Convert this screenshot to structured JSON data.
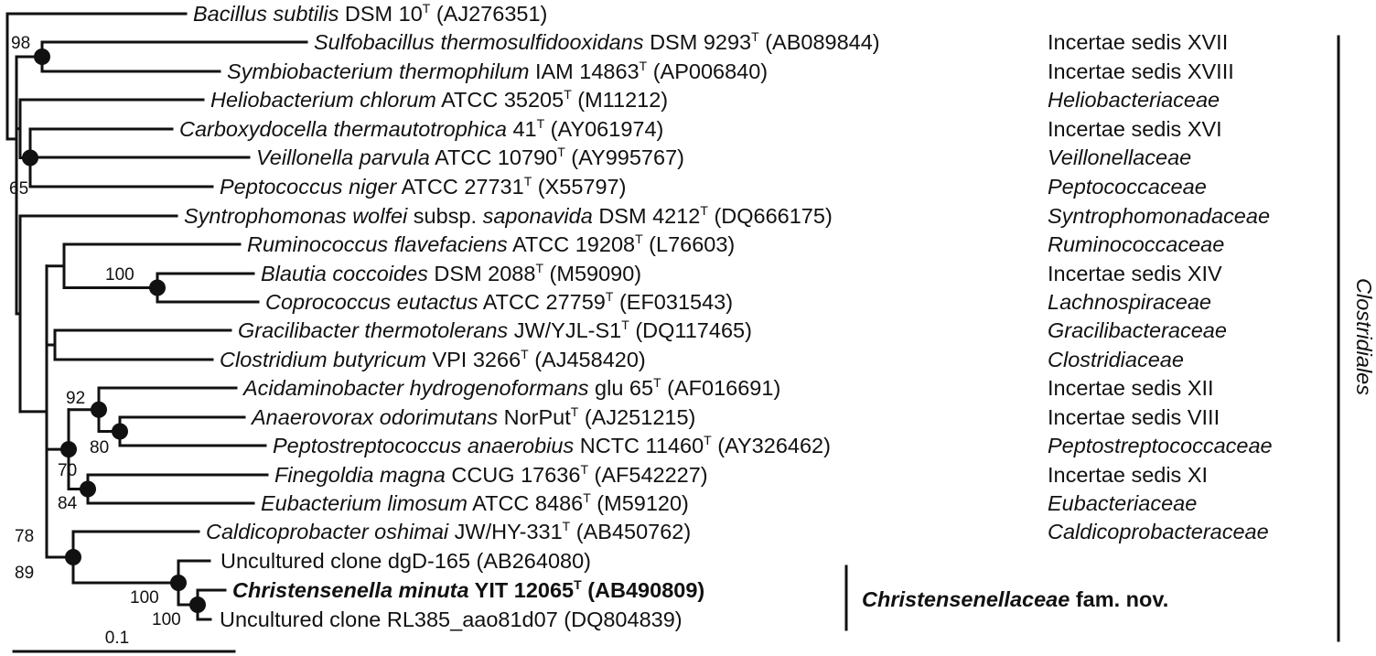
{
  "taxa": [
    {
      "id": "bsub",
      "parts": [
        {
          "t": "Bacillus subtilis",
          "i": true
        },
        {
          "t": " DSM 10"
        },
        {
          "t": "T",
          "sup": true
        },
        {
          "t": " (AJ276351)"
        }
      ],
      "family": []
    },
    {
      "id": "sulfo",
      "parts": [
        {
          "t": "Sulfobacillus thermosulfidooxidans",
          "i": true
        },
        {
          "t": " DSM 9293"
        },
        {
          "t": "T",
          "sup": true
        },
        {
          "t": " (AB089844)"
        }
      ],
      "family": [
        {
          "t": "Incertae sedis XVII"
        }
      ]
    },
    {
      "id": "symb",
      "parts": [
        {
          "t": "Symbiobacterium thermophilum",
          "i": true
        },
        {
          "t": " IAM 14863"
        },
        {
          "t": "T",
          "sup": true
        },
        {
          "t": " (AP006840)"
        }
      ],
      "family": [
        {
          "t": "Incertae sedis XVIII"
        }
      ]
    },
    {
      "id": "helio",
      "parts": [
        {
          "t": "Heliobacterium chlorum",
          "i": true
        },
        {
          "t": " ATCC 35205"
        },
        {
          "t": "T",
          "sup": true
        },
        {
          "t": " (M11212)"
        }
      ],
      "family": [
        {
          "t": "Heliobacteriaceae",
          "i": true
        }
      ]
    },
    {
      "id": "carbo",
      "parts": [
        {
          "t": "Carboxydocella thermautotrophica",
          "i": true
        },
        {
          "t": " 41"
        },
        {
          "t": "T",
          "sup": true
        },
        {
          "t": " (AY061974)"
        }
      ],
      "family": [
        {
          "t": "Incertae sedis XVI"
        }
      ]
    },
    {
      "id": "veil",
      "parts": [
        {
          "t": "Veillonella parvula",
          "i": true
        },
        {
          "t": " ATCC 10790"
        },
        {
          "t": "T",
          "sup": true
        },
        {
          "t": " (AY995767)"
        }
      ],
      "family": [
        {
          "t": "Veillonellaceae",
          "i": true
        }
      ]
    },
    {
      "id": "pepto",
      "parts": [
        {
          "t": "Peptococcus niger",
          "i": true
        },
        {
          "t": " ATCC 27731"
        },
        {
          "t": "T",
          "sup": true
        },
        {
          "t": " (X55797)"
        }
      ],
      "family": [
        {
          "t": "Peptococcaceae",
          "i": true
        }
      ]
    },
    {
      "id": "syntro",
      "parts": [
        {
          "t": "Syntrophomonas wolfei",
          "i": true
        },
        {
          "t": " subsp. "
        },
        {
          "t": "saponavida",
          "i": true
        },
        {
          "t": " DSM 4212"
        },
        {
          "t": "T",
          "sup": true
        },
        {
          "t": " (DQ666175)"
        }
      ],
      "family": [
        {
          "t": "Syntrophomonadaceae",
          "i": true
        }
      ]
    },
    {
      "id": "rumino",
      "parts": [
        {
          "t": "Ruminococcus flavefaciens",
          "i": true
        },
        {
          "t": " ATCC 19208"
        },
        {
          "t": "T",
          "sup": true
        },
        {
          "t": " (L76603)"
        }
      ],
      "family": [
        {
          "t": "Ruminococcaceae",
          "i": true
        }
      ]
    },
    {
      "id": "blautia",
      "parts": [
        {
          "t": "Blautia coccoides",
          "i": true
        },
        {
          "t": " DSM 2088"
        },
        {
          "t": "T",
          "sup": true
        },
        {
          "t": " (M59090)"
        }
      ],
      "family": [
        {
          "t": "Incertae sedis XIV"
        }
      ]
    },
    {
      "id": "copro",
      "parts": [
        {
          "t": "Coprococcus eutactus",
          "i": true
        },
        {
          "t": " ATCC 27759"
        },
        {
          "t": "T",
          "sup": true
        },
        {
          "t": " (EF031543)"
        }
      ],
      "family": [
        {
          "t": "Lachnospiraceae",
          "i": true
        }
      ]
    },
    {
      "id": "graci",
      "parts": [
        {
          "t": "Gracilibacter thermotolerans",
          "i": true
        },
        {
          "t": " JW/YJL-S1"
        },
        {
          "t": "T",
          "sup": true
        },
        {
          "t": " (DQ117465)"
        }
      ],
      "family": [
        {
          "t": "Gracilibacteraceae",
          "i": true
        }
      ]
    },
    {
      "id": "clost",
      "parts": [
        {
          "t": "Clostridium butyricum",
          "i": true
        },
        {
          "t": " VPI 3266"
        },
        {
          "t": "T",
          "sup": true
        },
        {
          "t": " (AJ458420)"
        }
      ],
      "family": [
        {
          "t": "Clostridiaceae",
          "i": true
        }
      ]
    },
    {
      "id": "acida",
      "parts": [
        {
          "t": "Acidaminobacter hydrogenoformans",
          "i": true
        },
        {
          "t": " glu 65"
        },
        {
          "t": "T",
          "sup": true
        },
        {
          "t": " (AF016691)"
        }
      ],
      "family": [
        {
          "t": "Incertae sedis XII"
        }
      ]
    },
    {
      "id": "anaero",
      "parts": [
        {
          "t": "Anaerovorax odorimutans",
          "i": true
        },
        {
          "t": " NorPut"
        },
        {
          "t": "T",
          "sup": true
        },
        {
          "t": " (AJ251215)"
        }
      ],
      "family": [
        {
          "t": "Incertae sedis VIII"
        }
      ]
    },
    {
      "id": "peptostr",
      "parts": [
        {
          "t": "Peptostreptococcus anaerobius",
          "i": true
        },
        {
          "t": " NCTC 11460"
        },
        {
          "t": "T",
          "sup": true
        },
        {
          "t": " (AY326462)"
        }
      ],
      "family": [
        {
          "t": "Peptostreptococcaceae",
          "i": true
        }
      ]
    },
    {
      "id": "fine",
      "parts": [
        {
          "t": "Finegoldia magna",
          "i": true
        },
        {
          "t": " CCUG 17636"
        },
        {
          "t": "T",
          "sup": true
        },
        {
          "t": " (AF542227)"
        }
      ],
      "family": [
        {
          "t": "Incertae sedis XI"
        }
      ]
    },
    {
      "id": "eubac",
      "parts": [
        {
          "t": "Eubacterium limosum",
          "i": true
        },
        {
          "t": " ATCC 8486"
        },
        {
          "t": "T",
          "sup": true
        },
        {
          "t": " (M59120)"
        }
      ],
      "family": [
        {
          "t": "Eubacteriaceae",
          "i": true
        }
      ]
    },
    {
      "id": "caldi",
      "parts": [
        {
          "t": "Caldicoprobacter oshimai",
          "i": true
        },
        {
          "t": " JW/HY-331"
        },
        {
          "t": "T",
          "sup": true
        },
        {
          "t": " (AB450762)"
        }
      ],
      "family": [
        {
          "t": "Caldicoprobacteraceae",
          "i": true
        }
      ]
    },
    {
      "id": "dgd",
      "parts": [
        {
          "t": "Uncultured clone dgD-165 (AB264080)"
        }
      ],
      "family": []
    },
    {
      "id": "chris",
      "bold": true,
      "parts": [
        {
          "t": "Christensenella minuta",
          "i": true
        },
        {
          "t": " YIT 12065"
        },
        {
          "t": "T",
          "sup": true
        },
        {
          "t": " (AB490809)"
        }
      ],
      "family": []
    },
    {
      "id": "rl385",
      "parts": [
        {
          "t": "Uncultured clone RL385_aao81d07 (DQ804839)"
        }
      ],
      "family": []
    }
  ],
  "bootstrap": [
    {
      "id": "b98",
      "text": "98"
    },
    {
      "id": "b65",
      "text": "65"
    },
    {
      "id": "b100a",
      "text": "100"
    },
    {
      "id": "b92",
      "text": "92"
    },
    {
      "id": "b80",
      "text": "80"
    },
    {
      "id": "b70",
      "text": "70"
    },
    {
      "id": "b84",
      "text": "84"
    },
    {
      "id": "b78",
      "text": "78"
    },
    {
      "id": "b89",
      "text": "89"
    },
    {
      "id": "b100b",
      "text": "100"
    },
    {
      "id": "b100c",
      "text": "100"
    }
  ],
  "group_label": {
    "parts": [
      {
        "t": "Christensenellaceae",
        "i": true
      },
      {
        "t": " fam. nov."
      }
    ]
  },
  "order_label": "Clostridiales",
  "scale_bar_label": "0.1"
}
